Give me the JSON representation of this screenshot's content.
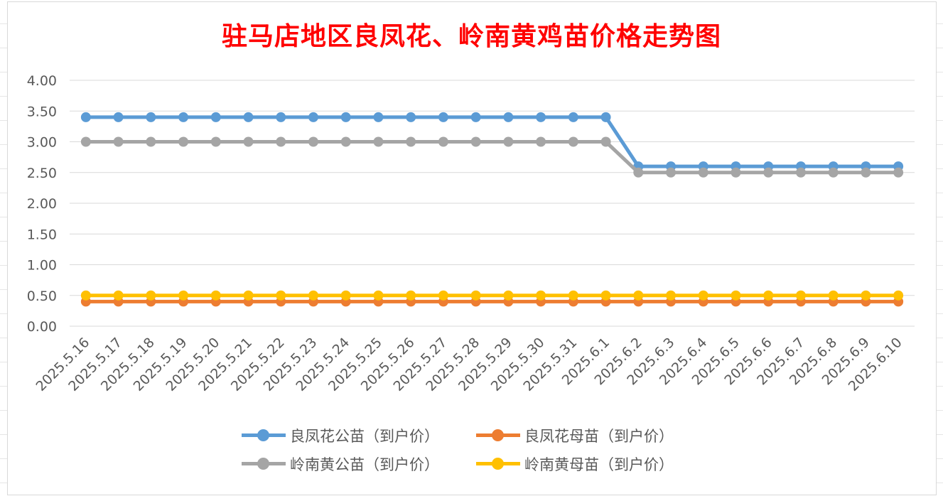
{
  "chart_data": {
    "type": "line",
    "title": "驻马店地区良凤花、岭南黄鸡苗价格走势图",
    "categories": [
      "2025.5.16",
      "2025.5.17",
      "2025.5.18",
      "2025.5.19",
      "2025.5.20",
      "2025.5.21",
      "2025.5.22",
      "2025.5.23",
      "2025.5.24",
      "2025.5.25",
      "2025.5.26",
      "2025.5.27",
      "2025.5.28",
      "2025.5.29",
      "2025.5.30",
      "2025.5.31",
      "2025.6.1",
      "2025.6.2",
      "2025.6.3",
      "2025.6.4",
      "2025.6.5",
      "2025.6.6",
      "2025.6.7",
      "2025.6.8",
      "2025.6.9",
      "2025.6.10"
    ],
    "ylim": [
      0,
      4
    ],
    "yticks": [
      "0.00",
      "0.50",
      "1.00",
      "1.50",
      "2.00",
      "2.50",
      "3.00",
      "3.50",
      "4.00"
    ],
    "grid": true,
    "legend_position": "bottom",
    "series": [
      {
        "name": "良凤花公苗（到户价）",
        "color": "#5b9bd5",
        "values": [
          3.4,
          3.4,
          3.4,
          3.4,
          3.4,
          3.4,
          3.4,
          3.4,
          3.4,
          3.4,
          3.4,
          3.4,
          3.4,
          3.4,
          3.4,
          3.4,
          3.4,
          2.6,
          2.6,
          2.6,
          2.6,
          2.6,
          2.6,
          2.6,
          2.6,
          2.6
        ]
      },
      {
        "name": "良凤花母苗（到户价）",
        "color": "#ed7d31",
        "values": [
          0.4,
          0.4,
          0.4,
          0.4,
          0.4,
          0.4,
          0.4,
          0.4,
          0.4,
          0.4,
          0.4,
          0.4,
          0.4,
          0.4,
          0.4,
          0.4,
          0.4,
          0.4,
          0.4,
          0.4,
          0.4,
          0.4,
          0.4,
          0.4,
          0.4,
          0.4
        ]
      },
      {
        "name": "岭南黄公苗（到户价）",
        "color": "#a5a5a5",
        "values": [
          3.0,
          3.0,
          3.0,
          3.0,
          3.0,
          3.0,
          3.0,
          3.0,
          3.0,
          3.0,
          3.0,
          3.0,
          3.0,
          3.0,
          3.0,
          3.0,
          3.0,
          2.5,
          2.5,
          2.5,
          2.5,
          2.5,
          2.5,
          2.5,
          2.5,
          2.5
        ]
      },
      {
        "name": "岭南黄母苗（到户价）",
        "color": "#ffc000",
        "values": [
          0.5,
          0.5,
          0.5,
          0.5,
          0.5,
          0.5,
          0.5,
          0.5,
          0.5,
          0.5,
          0.5,
          0.5,
          0.5,
          0.5,
          0.5,
          0.5,
          0.5,
          0.5,
          0.5,
          0.5,
          0.5,
          0.5,
          0.5,
          0.5,
          0.5,
          0.5
        ]
      }
    ]
  }
}
